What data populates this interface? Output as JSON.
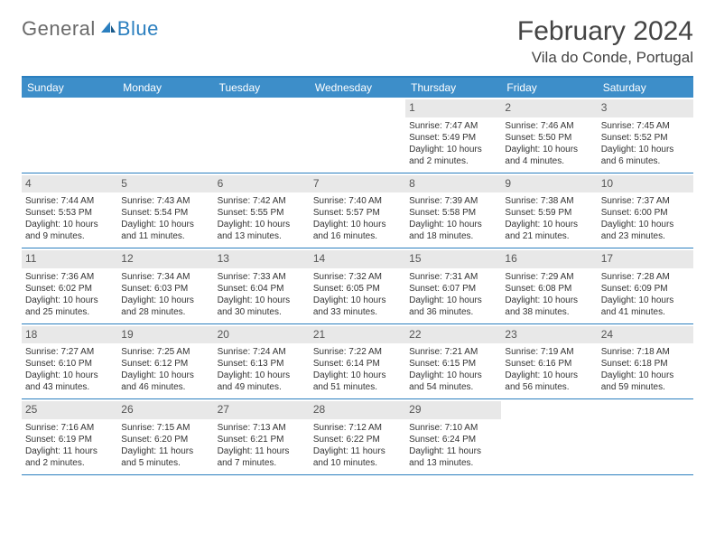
{
  "logo": {
    "text1": "General",
    "text2": "Blue"
  },
  "title": "February 2024",
  "location": "Vila do Conde, Portugal",
  "colors": {
    "header_bg": "#3d8ec9",
    "border": "#2b7fbf",
    "daynum_bg": "#e8e8e8",
    "text": "#333333"
  },
  "dow": [
    "Sunday",
    "Monday",
    "Tuesday",
    "Wednesday",
    "Thursday",
    "Friday",
    "Saturday"
  ],
  "weeks": [
    [
      {
        "empty": true
      },
      {
        "empty": true
      },
      {
        "empty": true
      },
      {
        "empty": true
      },
      {
        "n": "1",
        "sunrise": "7:47 AM",
        "sunset": "5:49 PM",
        "dl1": "Daylight: 10 hours",
        "dl2": "and 2 minutes."
      },
      {
        "n": "2",
        "sunrise": "7:46 AM",
        "sunset": "5:50 PM",
        "dl1": "Daylight: 10 hours",
        "dl2": "and 4 minutes."
      },
      {
        "n": "3",
        "sunrise": "7:45 AM",
        "sunset": "5:52 PM",
        "dl1": "Daylight: 10 hours",
        "dl2": "and 6 minutes."
      }
    ],
    [
      {
        "n": "4",
        "sunrise": "7:44 AM",
        "sunset": "5:53 PM",
        "dl1": "Daylight: 10 hours",
        "dl2": "and 9 minutes."
      },
      {
        "n": "5",
        "sunrise": "7:43 AM",
        "sunset": "5:54 PM",
        "dl1": "Daylight: 10 hours",
        "dl2": "and 11 minutes."
      },
      {
        "n": "6",
        "sunrise": "7:42 AM",
        "sunset": "5:55 PM",
        "dl1": "Daylight: 10 hours",
        "dl2": "and 13 minutes."
      },
      {
        "n": "7",
        "sunrise": "7:40 AM",
        "sunset": "5:57 PM",
        "dl1": "Daylight: 10 hours",
        "dl2": "and 16 minutes."
      },
      {
        "n": "8",
        "sunrise": "7:39 AM",
        "sunset": "5:58 PM",
        "dl1": "Daylight: 10 hours",
        "dl2": "and 18 minutes."
      },
      {
        "n": "9",
        "sunrise": "7:38 AM",
        "sunset": "5:59 PM",
        "dl1": "Daylight: 10 hours",
        "dl2": "and 21 minutes."
      },
      {
        "n": "10",
        "sunrise": "7:37 AM",
        "sunset": "6:00 PM",
        "dl1": "Daylight: 10 hours",
        "dl2": "and 23 minutes."
      }
    ],
    [
      {
        "n": "11",
        "sunrise": "7:36 AM",
        "sunset": "6:02 PM",
        "dl1": "Daylight: 10 hours",
        "dl2": "and 25 minutes."
      },
      {
        "n": "12",
        "sunrise": "7:34 AM",
        "sunset": "6:03 PM",
        "dl1": "Daylight: 10 hours",
        "dl2": "and 28 minutes."
      },
      {
        "n": "13",
        "sunrise": "7:33 AM",
        "sunset": "6:04 PM",
        "dl1": "Daylight: 10 hours",
        "dl2": "and 30 minutes."
      },
      {
        "n": "14",
        "sunrise": "7:32 AM",
        "sunset": "6:05 PM",
        "dl1": "Daylight: 10 hours",
        "dl2": "and 33 minutes."
      },
      {
        "n": "15",
        "sunrise": "7:31 AM",
        "sunset": "6:07 PM",
        "dl1": "Daylight: 10 hours",
        "dl2": "and 36 minutes."
      },
      {
        "n": "16",
        "sunrise": "7:29 AM",
        "sunset": "6:08 PM",
        "dl1": "Daylight: 10 hours",
        "dl2": "and 38 minutes."
      },
      {
        "n": "17",
        "sunrise": "7:28 AM",
        "sunset": "6:09 PM",
        "dl1": "Daylight: 10 hours",
        "dl2": "and 41 minutes."
      }
    ],
    [
      {
        "n": "18",
        "sunrise": "7:27 AM",
        "sunset": "6:10 PM",
        "dl1": "Daylight: 10 hours",
        "dl2": "and 43 minutes."
      },
      {
        "n": "19",
        "sunrise": "7:25 AM",
        "sunset": "6:12 PM",
        "dl1": "Daylight: 10 hours",
        "dl2": "and 46 minutes."
      },
      {
        "n": "20",
        "sunrise": "7:24 AM",
        "sunset": "6:13 PM",
        "dl1": "Daylight: 10 hours",
        "dl2": "and 49 minutes."
      },
      {
        "n": "21",
        "sunrise": "7:22 AM",
        "sunset": "6:14 PM",
        "dl1": "Daylight: 10 hours",
        "dl2": "and 51 minutes."
      },
      {
        "n": "22",
        "sunrise": "7:21 AM",
        "sunset": "6:15 PM",
        "dl1": "Daylight: 10 hours",
        "dl2": "and 54 minutes."
      },
      {
        "n": "23",
        "sunrise": "7:19 AM",
        "sunset": "6:16 PM",
        "dl1": "Daylight: 10 hours",
        "dl2": "and 56 minutes."
      },
      {
        "n": "24",
        "sunrise": "7:18 AM",
        "sunset": "6:18 PM",
        "dl1": "Daylight: 10 hours",
        "dl2": "and 59 minutes."
      }
    ],
    [
      {
        "n": "25",
        "sunrise": "7:16 AM",
        "sunset": "6:19 PM",
        "dl1": "Daylight: 11 hours",
        "dl2": "and 2 minutes."
      },
      {
        "n": "26",
        "sunrise": "7:15 AM",
        "sunset": "6:20 PM",
        "dl1": "Daylight: 11 hours",
        "dl2": "and 5 minutes."
      },
      {
        "n": "27",
        "sunrise": "7:13 AM",
        "sunset": "6:21 PM",
        "dl1": "Daylight: 11 hours",
        "dl2": "and 7 minutes."
      },
      {
        "n": "28",
        "sunrise": "7:12 AM",
        "sunset": "6:22 PM",
        "dl1": "Daylight: 11 hours",
        "dl2": "and 10 minutes."
      },
      {
        "n": "29",
        "sunrise": "7:10 AM",
        "sunset": "6:24 PM",
        "dl1": "Daylight: 11 hours",
        "dl2": "and 13 minutes."
      },
      {
        "empty": true
      },
      {
        "empty": true
      }
    ]
  ]
}
